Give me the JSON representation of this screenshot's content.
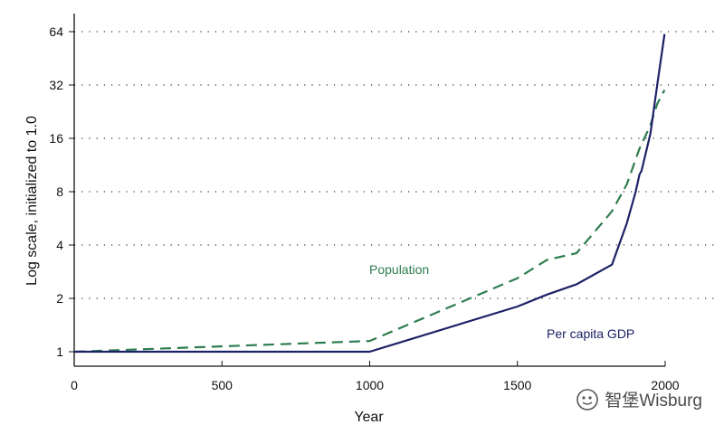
{
  "chart_data": {
    "type": "line",
    "xlabel": "Year",
    "ylabel": "Log scale, initialized to 1.0",
    "xlim": [
      0,
      2000
    ],
    "ylim": [
      1,
      64
    ],
    "y_scale": "log2",
    "grid": "horizontal dotted",
    "x_ticks": [
      0,
      500,
      1000,
      1500,
      2000
    ],
    "y_ticks": [
      1,
      2,
      4,
      8,
      16,
      32,
      64
    ],
    "series": [
      {
        "name": "Population",
        "style": "dashed",
        "color": "#2e7d4f",
        "x": [
          0,
          1000,
          1500,
          1600,
          1700,
          1820,
          1870,
          1913,
          1950,
          1973,
          1998
        ],
        "y": [
          1.0,
          1.15,
          2.6,
          3.3,
          3.6,
          6.2,
          8.8,
          14.0,
          19.0,
          25.0,
          30.0
        ]
      },
      {
        "name": "Per capita GDP",
        "style": "solid",
        "color": "#1c2266",
        "x": [
          0,
          1000,
          1500,
          1600,
          1700,
          1820,
          1870,
          1900,
          1913,
          1920,
          1950,
          1973,
          1998
        ],
        "y": [
          1.0,
          1.0,
          1.8,
          2.1,
          2.4,
          3.1,
          5.3,
          8.0,
          10.0,
          10.5,
          17.0,
          32.0,
          62.0
        ]
      }
    ]
  },
  "watermark": {
    "text": "智堡Wisburg"
  }
}
